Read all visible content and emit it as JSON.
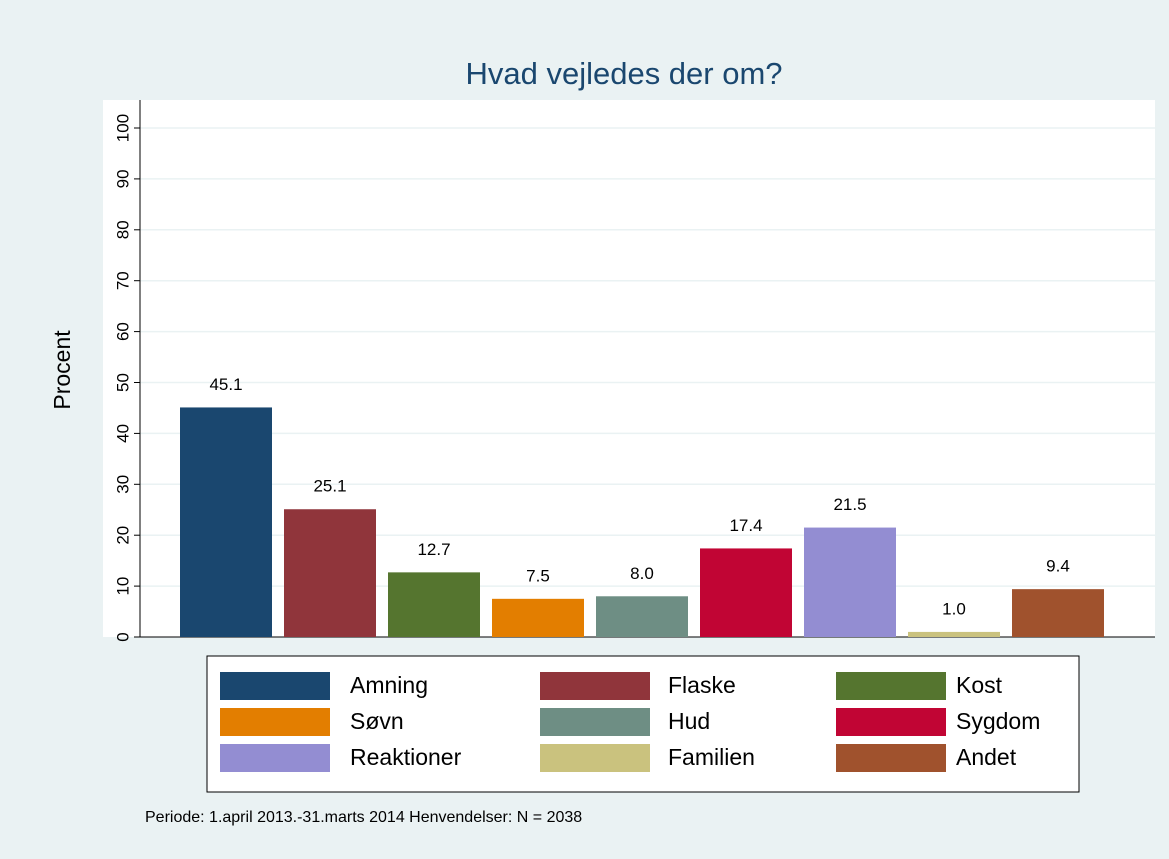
{
  "chart_data": {
    "type": "bar",
    "title": "Hvad vejledes der om?",
    "ylabel": "Procent",
    "note": "Periode: 1.april 2013.-31.marts 2014 Henvendelser: N = 2038",
    "ylim": [
      0,
      100
    ],
    "yticks": [
      0,
      10,
      20,
      30,
      40,
      50,
      60,
      70,
      80,
      90,
      100
    ],
    "grid": true,
    "series": [
      {
        "name": "Amning",
        "color": "#1a476f",
        "values": [
          45.1
        ],
        "value_labels": [
          "45.1"
        ]
      },
      {
        "name": "Flaske",
        "color": "#90353b",
        "values": [
          25.1
        ],
        "value_labels": [
          "25.1"
        ]
      },
      {
        "name": "Kost",
        "color": "#55752f",
        "values": [
          12.7
        ],
        "value_labels": [
          "12.7"
        ]
      },
      {
        "name": "Søvn",
        "color": "#e37e00",
        "values": [
          7.5
        ],
        "value_labels": [
          "7.5"
        ]
      },
      {
        "name": "Hud",
        "color": "#6e8e84",
        "values": [
          8
        ],
        "value_labels": [
          "8.0"
        ]
      },
      {
        "name": "Sygdom",
        "color": "#c10534",
        "values": [
          17.4
        ],
        "value_labels": [
          "17.4"
        ]
      },
      {
        "name": "Reaktioner",
        "color": "#938dd2",
        "values": [
          21.5
        ],
        "value_labels": [
          "21.5"
        ]
      },
      {
        "name": "Familien",
        "color": "#cac27e",
        "values": [
          1
        ],
        "value_labels": [
          "1.0"
        ]
      },
      {
        "name": "Andet",
        "color": "#a0522d",
        "values": [
          9.4
        ],
        "value_labels": [
          "9.4"
        ]
      }
    ]
  }
}
